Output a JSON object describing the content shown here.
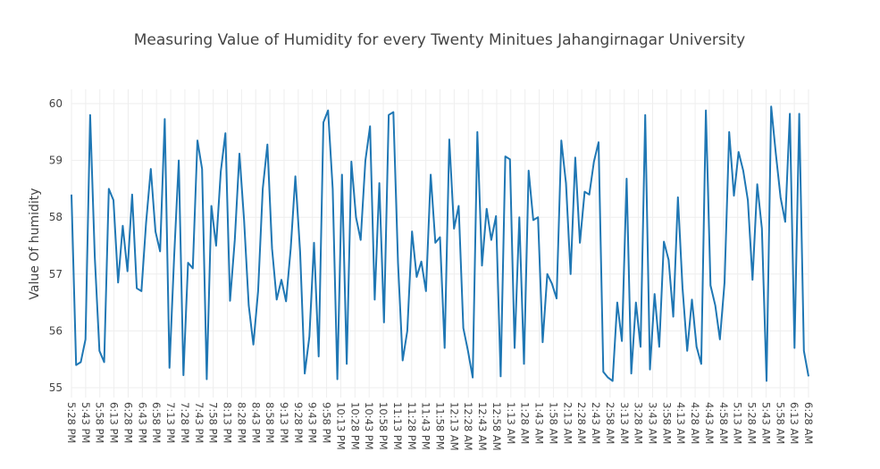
{
  "chart_data": {
    "type": "line",
    "title": "Measuring Value of Humidity for every Twenty Minitues Jahangirnagar University",
    "xlabel": "",
    "ylabel": "Value Of humidity",
    "ylim": [
      55,
      60
    ],
    "yticks": [
      55,
      56,
      57,
      58,
      59,
      60
    ],
    "grid": true,
    "legend": "none",
    "color": "#1f77b4",
    "x_tick_labels": [
      "5:28 PM",
      "5:43 PM",
      "5:58 PM",
      "6:13 PM",
      "6:28 PM",
      "6:43 PM",
      "6:58 PM",
      "7:13 PM",
      "7:28 PM",
      "7:43 PM",
      "7:58 PM",
      "8:13 PM",
      "8:28 PM",
      "8:43 PM",
      "8:58 PM",
      "9:13 PM",
      "9:28 PM",
      "9:43 PM",
      "9:58 PM",
      "10:13 PM",
      "10:28 PM",
      "10:43 PM",
      "10:58 PM",
      "11:13 PM",
      "11:28 PM",
      "11:43 PM",
      "11:58 PM",
      "12:13 AM",
      "12:28 AM",
      "12:43 AM",
      "12:58 AM",
      "1:13 AM",
      "1:28 AM",
      "1:43 AM",
      "1:58 AM",
      "2:13 AM",
      "2:28 AM",
      "2:43 AM",
      "2:58 AM",
      "3:13 AM",
      "3:28 AM",
      "3:43 AM",
      "3:58 AM",
      "4:13 AM",
      "4:28 AM",
      "4:43 AM",
      "4:58 AM",
      "5:13 AM",
      "5:28 AM",
      "5:43 AM",
      "5:58 AM",
      "6:13 AM",
      "6:28 AM"
    ],
    "series": [
      {
        "values": [
          58.4,
          55.4,
          55.45,
          55.85,
          59.8,
          57.3,
          55.65,
          55.45,
          58.5,
          58.3,
          56.85,
          57.85,
          57.05,
          58.4,
          56.75,
          56.7,
          57.9,
          58.85,
          57.75,
          57.4,
          59.73,
          55.35,
          57.3,
          59.0,
          55.22,
          57.2,
          57.1,
          59.35,
          58.85,
          55.15,
          58.2,
          57.5,
          58.8,
          59.48,
          56.53,
          57.6,
          59.12,
          57.95,
          56.45,
          55.76,
          56.7,
          58.5,
          59.28,
          57.45,
          56.55,
          56.9,
          56.52,
          57.45,
          58.72,
          57.4,
          55.25,
          55.9,
          57.55,
          55.55,
          59.67,
          59.88,
          58.5,
          55.15,
          58.75,
          55.42,
          58.98,
          58.0,
          57.6,
          59.0,
          59.6,
          56.55,
          58.6,
          56.15,
          59.8,
          59.85,
          57.2,
          55.48,
          56.0,
          57.75,
          56.95,
          57.22,
          56.7,
          58.75,
          57.55,
          57.65,
          55.7,
          59.37,
          57.8,
          58.2,
          56.05,
          55.65,
          55.18,
          59.5,
          57.15,
          58.15,
          57.6,
          58.02,
          55.2,
          59.07,
          59.02,
          55.7,
          58.0,
          55.42,
          58.82,
          57.95,
          58.0,
          55.8,
          57.0,
          56.83,
          56.57,
          59.35,
          58.6,
          57.0,
          59.05,
          57.55,
          58.45,
          58.4,
          58.98,
          59.32,
          55.28,
          55.18,
          55.12,
          56.5,
          55.82,
          58.68,
          55.25,
          56.5,
          55.72,
          59.8,
          55.32,
          56.65,
          55.72,
          57.57,
          57.25,
          56.25,
          58.35,
          56.75,
          55.65,
          56.55,
          55.72,
          55.42,
          59.88,
          56.8,
          56.45,
          55.85,
          56.85,
          59.5,
          58.38,
          59.15,
          58.82,
          58.3,
          56.9,
          58.58,
          57.8,
          55.12,
          59.95,
          59.12,
          58.35,
          57.92,
          59.82,
          55.7,
          59.82,
          55.65,
          55.2
        ]
      }
    ]
  }
}
